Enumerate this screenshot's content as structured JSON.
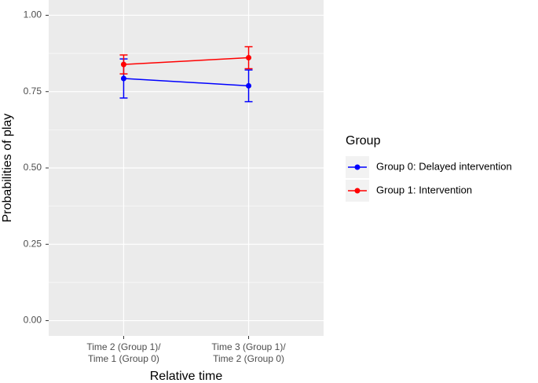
{
  "chart_data": {
    "type": "line",
    "x_label": "Relative time",
    "y_label": "Probabilities of play",
    "categories": [
      [
        "Time 2 (Group 1)/",
        "Time 1 (Group 0)"
      ],
      [
        "Time 3 (Group 1)/",
        "Time 2 (Group 0)"
      ]
    ],
    "series": [
      {
        "name": "Group 0: Delayed intervention",
        "color": "#0000ff",
        "values": [
          0.793,
          0.769
        ],
        "errors": [
          0.064,
          0.052
        ]
      },
      {
        "name": "Group 1: Intervention",
        "color": "#ff0000",
        "values": [
          0.839,
          0.861
        ],
        "errors": [
          0.031,
          0.036
        ]
      }
    ],
    "ylim": [
      -0.05,
      1.05
    ],
    "yticks": [
      {
        "value": 0,
        "label": "0.00"
      },
      {
        "value": 0.25,
        "label": "0.25"
      },
      {
        "value": 0.5,
        "label": "0.50"
      },
      {
        "value": 0.75,
        "label": "0.75"
      },
      {
        "value": 1,
        "label": "1.00"
      }
    ],
    "grid": true,
    "minor_grid": true,
    "legend_title": "Group",
    "legend_position": "right"
  }
}
